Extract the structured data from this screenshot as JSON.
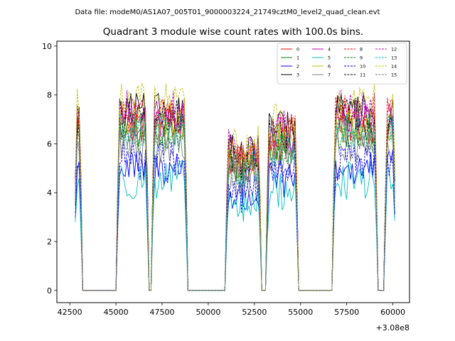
{
  "suptitle": "Data file: modeM0/AS1A07_005T01_9000003224_21749cztM0_level2_quad_clean.evt",
  "chart_data": {
    "type": "line",
    "title": "Quadrant 3 module wise count rates with 100.0s bins.",
    "xlabel": "",
    "ylabel": "",
    "x_offset_label": "+3.08e8",
    "xlim": [
      41800,
      60900
    ],
    "ylim": [
      -0.5,
      10.2
    ],
    "xticks": [
      42500,
      45000,
      47500,
      50000,
      52500,
      55000,
      57500,
      60000
    ],
    "yticks": [
      0,
      2,
      4,
      6,
      8,
      10
    ],
    "legend_position": "top-right",
    "segments": [
      [
        42800,
        43100
      ],
      [
        45100,
        46700
      ],
      [
        47000,
        48800
      ],
      [
        51000,
        52800
      ],
      [
        53200,
        54800
      ],
      [
        56800,
        59100
      ],
      [
        59600,
        60100
      ]
    ],
    "series": [
      {
        "name": "0",
        "color": "#ff0000",
        "dash": "solid",
        "level": 6.8
      },
      {
        "name": "1",
        "color": "#008000",
        "dash": "solid",
        "level": 6.6
      },
      {
        "name": "2",
        "color": "#0000ff",
        "dash": "solid",
        "level": 5.0
      },
      {
        "name": "3",
        "color": "#000000",
        "dash": "solid",
        "level": 7.3
      },
      {
        "name": "4",
        "color": "#bf00bf",
        "dash": "solid",
        "level": 7.0
      },
      {
        "name": "5",
        "color": "#00bfbf",
        "dash": "solid",
        "level": 4.5
      },
      {
        "name": "6",
        "color": "#bfbf00",
        "dash": "solid",
        "level": 6.9
      },
      {
        "name": "7",
        "color": "#808080",
        "dash": "solid",
        "level": 6.0
      },
      {
        "name": "8",
        "color": "#ff0000",
        "dash": "dashed",
        "level": 7.2
      },
      {
        "name": "9",
        "color": "#008000",
        "dash": "dashed",
        "level": 6.4
      },
      {
        "name": "10",
        "color": "#0000ff",
        "dash": "dashed",
        "level": 5.3
      },
      {
        "name": "11",
        "color": "#000000",
        "dash": "dashed",
        "level": 7.1
      },
      {
        "name": "12",
        "color": "#bf00bf",
        "dash": "dashed",
        "level": 7.4
      },
      {
        "name": "13",
        "color": "#00bfbf",
        "dash": "dashed",
        "level": 6.5
      },
      {
        "name": "14",
        "color": "#bfbf00",
        "dash": "dashed",
        "level": 7.7
      },
      {
        "name": "15",
        "color": "#808080",
        "dash": "dashed",
        "level": 6.2
      }
    ]
  }
}
